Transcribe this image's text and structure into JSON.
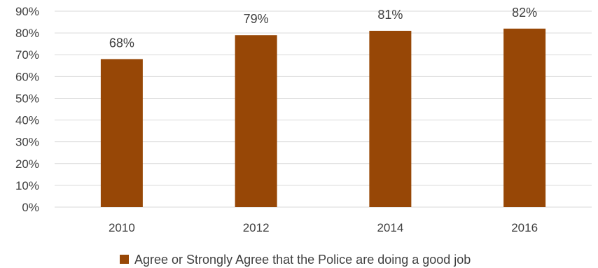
{
  "chart_data": {
    "type": "bar",
    "title": "",
    "xlabel": "",
    "ylabel": "",
    "categories": [
      "2010",
      "2012",
      "2014",
      "2016"
    ],
    "series": [
      {
        "name": "Agree or Strongly Agree that the Police are doing a good job",
        "values": [
          68,
          79,
          81,
          82
        ],
        "color": "#974706"
      }
    ],
    "data_labels": [
      "68%",
      "79%",
      "81%",
      "82%"
    ],
    "ylim": [
      0,
      90
    ],
    "yticks": [
      0,
      10,
      20,
      30,
      40,
      50,
      60,
      70,
      80,
      90
    ],
    "ytick_labels": [
      "0%",
      "10%",
      "20%",
      "30%",
      "40%",
      "50%",
      "60%",
      "70%",
      "80%",
      "90%"
    ],
    "grid": true,
    "legend_position": "bottom",
    "colors": {
      "bar": "#974706",
      "grid": "#d9d9d9",
      "text": "#404040"
    }
  }
}
